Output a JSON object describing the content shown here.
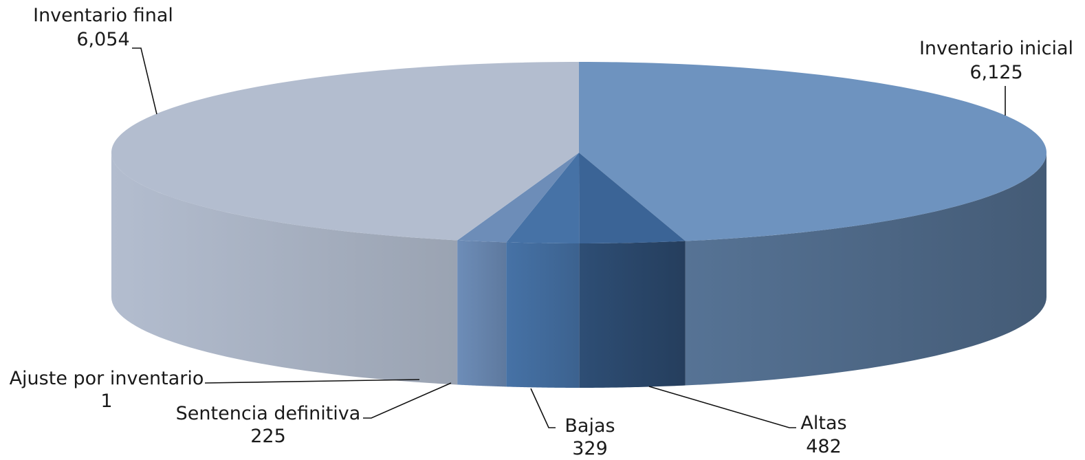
{
  "chart_data": {
    "type": "pie",
    "style": "3d",
    "legend": "none",
    "categories": [
      "Inventario inicial",
      "Altas",
      "Bajas",
      "Sentencia definitiva",
      "Ajuste por inventario",
      "Inventario final"
    ],
    "values": [
      6125,
      482,
      329,
      225,
      1,
      6054
    ],
    "value_labels": [
      "6,125",
      "482",
      "329",
      "225",
      "1",
      "6,054"
    ],
    "colors": {
      "Inventario inicial": "#6e93bf",
      "Altas": "#3b6496",
      "Bajas": "#4672a6",
      "Sentencia definitiva": "#6d8db8",
      "Ajuste por inventario": "#6d8db8",
      "Inventario final": "#b3bdcf"
    }
  }
}
